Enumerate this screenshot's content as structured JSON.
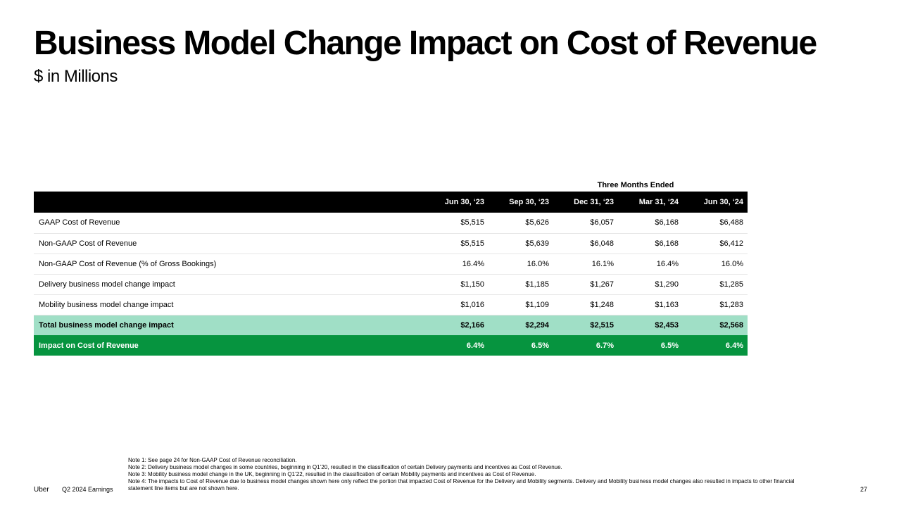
{
  "title": "Business Model Change Impact on Cost of Revenue",
  "subtitle": "$ in Millions",
  "table": {
    "period_header": "Three Months Ended",
    "columns": [
      "Jun 30, ‘23",
      "Sep 30, ‘23",
      "Dec 31, ‘23",
      "Mar 31, ‘24",
      "Jun 30, ‘24"
    ],
    "rows": [
      {
        "label": "GAAP Cost of Revenue",
        "values": [
          "$5,515",
          "$5,626",
          "$6,057",
          "$6,168",
          "$6,488"
        ]
      },
      {
        "label": "Non-GAAP Cost of Revenue",
        "values": [
          "$5,515",
          "$5,639",
          "$6,048",
          "$6,168",
          "$6,412"
        ]
      },
      {
        "label": "Non-GAAP Cost of Revenue (% of Gross Bookings)",
        "values": [
          "16.4%",
          "16.0%",
          "16.1%",
          "16.4%",
          "16.0%"
        ]
      },
      {
        "label": "Delivery business model change impact",
        "values": [
          "$1,150",
          "$1,185",
          "$1,267",
          "$1,290",
          "$1,285"
        ]
      },
      {
        "label": "Mobility business model change impact",
        "values": [
          "$1,016",
          "$1,109",
          "$1,248",
          "$1,163",
          "$1,283"
        ]
      }
    ],
    "total_row": {
      "label": "Total business model change impact",
      "values": [
        "$2,166",
        "$2,294",
        "$2,515",
        "$2,453",
        "$2,568"
      ]
    },
    "impact_row": {
      "label": "Impact on Cost of Revenue",
      "values": [
        "6.4%",
        "6.5%",
        "6.7%",
        "6.5%",
        "6.4%"
      ]
    }
  },
  "notes": [
    "Note 1: See page 24 for Non-GAAP Cost of Revenue reconciliation.",
    "Note 2: Delivery business model changes in some countries, beginning in Q1’20, resulted in the classification of certain Delivery payments and incentives as Cost of Revenue.",
    "Note 3: Mobility business model change in the UK, beginning in Q1’22, resulted in the classification of certain Mobility payments and incentives as Cost of Revenue.",
    "Note 4: The impacts to Cost of Revenue due to business model changes shown here only reflect the portion that impacted Cost of Revenue for the Delivery and Mobility segments. Delivery and Mobility business model changes also resulted in impacts to other financial statement line items but are not shown here."
  ],
  "footer": {
    "brand": "Uber",
    "report": "Q2 2024 Earnings",
    "page_number": "27"
  },
  "colors": {
    "header_bg": "#000000",
    "total_row_bg": "#a0dfc6",
    "impact_row_bg": "#06943f"
  }
}
